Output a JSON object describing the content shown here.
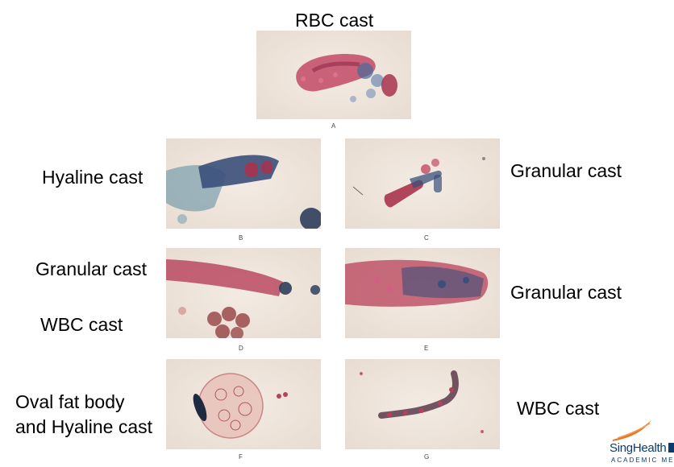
{
  "title": "RBC cast",
  "labels": {
    "hyaline": "Hyaline cast",
    "granular_right_1": "Granular cast",
    "granular_left": "Granular cast",
    "wbc_left": "WBC cast",
    "granular_right_2": "Granular cast",
    "oval_fat_line1": "Oval fat body",
    "oval_fat_line2": "and Hyaline cast",
    "wbc_right": "WBC cast"
  },
  "panel_letters": [
    "A",
    "B",
    "C",
    "D",
    "E",
    "F",
    "G"
  ],
  "logo": {
    "name": "SingHealth",
    "subtitle": "ACADEMIC MEDI"
  },
  "colors": {
    "background": "#e8dcd1",
    "stain_red": "#b8405a",
    "stain_blue": "#3b4f7a",
    "logo_blue": "#0b3b6e",
    "logo_orange": "#e8782a"
  }
}
